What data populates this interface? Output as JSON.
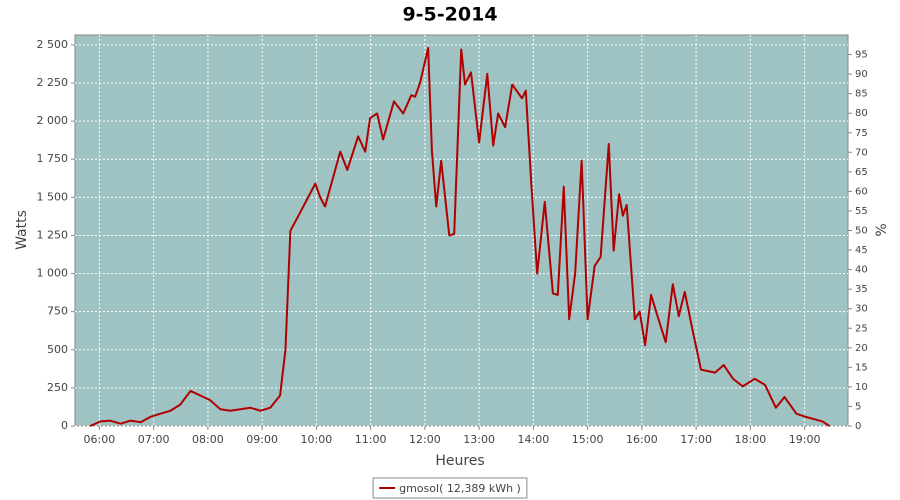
{
  "chart_data": {
    "type": "line",
    "title": "9-5-2014",
    "x_label": "Heures",
    "y_label": "Watts",
    "y2_label": "%",
    "xlim": [
      5.55,
      19.8
    ],
    "xticks": [
      {
        "value": 6,
        "label": "06:00"
      },
      {
        "value": 7,
        "label": "07:00"
      },
      {
        "value": 8,
        "label": "08:00"
      },
      {
        "value": 9,
        "label": "09:00"
      },
      {
        "value": 10,
        "label": "10:00"
      },
      {
        "value": 11,
        "label": "11:00"
      },
      {
        "value": 12,
        "label": "12:00"
      },
      {
        "value": 13,
        "label": "13:00"
      },
      {
        "value": 14,
        "label": "14:00"
      },
      {
        "value": 15,
        "label": "15:00"
      },
      {
        "value": 16,
        "label": "16:00"
      },
      {
        "value": 17,
        "label": "17:00"
      },
      {
        "value": 18,
        "label": "18:00"
      },
      {
        "value": 19,
        "label": "19:00"
      }
    ],
    "ylim": [
      0,
      2565
    ],
    "yticks": [
      0,
      250,
      500,
      750,
      {
        "value": 1000,
        "label": "1 000"
      },
      {
        "value": 1250,
        "label": "1 250"
      },
      {
        "value": 1500,
        "label": "1 500"
      },
      {
        "value": 1750,
        "label": "1 750"
      },
      {
        "value": 2000,
        "label": "2 000"
      },
      {
        "value": 2250,
        "label": "2 250"
      },
      {
        "value": 2500,
        "label": "2 500"
      }
    ],
    "y2lim": [
      0,
      100
    ],
    "y2ticks": [
      0,
      5,
      10,
      15,
      20,
      25,
      30,
      35,
      40,
      45,
      50,
      55,
      60,
      65,
      70,
      75,
      80,
      85,
      90,
      95
    ],
    "grid": true,
    "background": "#9fc3c3",
    "legend": "bottom",
    "x": [
      5.83,
      6.02,
      6.2,
      6.39,
      6.57,
      6.76,
      6.94,
      7.12,
      7.31,
      7.49,
      7.68,
      7.86,
      8.04,
      8.23,
      8.41,
      8.6,
      8.78,
      8.97,
      9.15,
      9.33,
      9.43,
      9.52,
      9.7,
      9.98,
      10.07,
      10.16,
      10.44,
      10.57,
      10.77,
      10.9,
      10.99,
      11.12,
      11.23,
      11.43,
      11.6,
      11.75,
      11.82,
      11.91,
      12.06,
      12.13,
      12.21,
      12.3,
      12.45,
      12.54,
      12.67,
      12.74,
      12.85,
      13.0,
      13.15,
      13.26,
      13.35,
      13.48,
      13.61,
      13.79,
      13.86,
      13.96,
      14.07,
      14.21,
      14.36,
      14.45,
      14.56,
      14.66,
      14.77,
      14.89,
      15.0,
      15.13,
      15.24,
      15.39,
      15.48,
      15.58,
      15.65,
      15.72,
      15.87,
      15.96,
      16.06,
      16.17,
      16.28,
      16.44,
      16.57,
      16.68,
      16.79,
      16.94,
      17.09,
      17.35,
      17.51,
      17.68,
      17.86,
      18.08,
      18.27,
      18.47,
      18.63,
      18.85,
      19.02,
      19.33,
      19.46
    ],
    "series": [
      {
        "name": "gmosol( 12,389 kWh )",
        "color": "#b00000",
        "values": [
          0,
          30,
          35,
          15,
          35,
          25,
          60,
          80,
          100,
          140,
          230,
          200,
          170,
          110,
          100,
          110,
          120,
          100,
          120,
          200,
          500,
          1280,
          1400,
          1590,
          1500,
          1440,
          1800,
          1680,
          1900,
          1800,
          2020,
          2050,
          1880,
          2130,
          2050,
          2170,
          2160,
          2250,
          2480,
          1800,
          1440,
          1740,
          1250,
          1260,
          2470,
          2240,
          2320,
          1860,
          2310,
          1840,
          2050,
          1960,
          2240,
          2150,
          2200,
          1600,
          1000,
          1470,
          870,
          860,
          1570,
          700,
          1000,
          1740,
          700,
          1050,
          1110,
          1850,
          1150,
          1520,
          1380,
          1450,
          700,
          750,
          530,
          860,
          730,
          550,
          930,
          720,
          880,
          620,
          370,
          350,
          400,
          310,
          260,
          310,
          270,
          120,
          190,
          80,
          60,
          30,
          0
        ]
      }
    ]
  }
}
